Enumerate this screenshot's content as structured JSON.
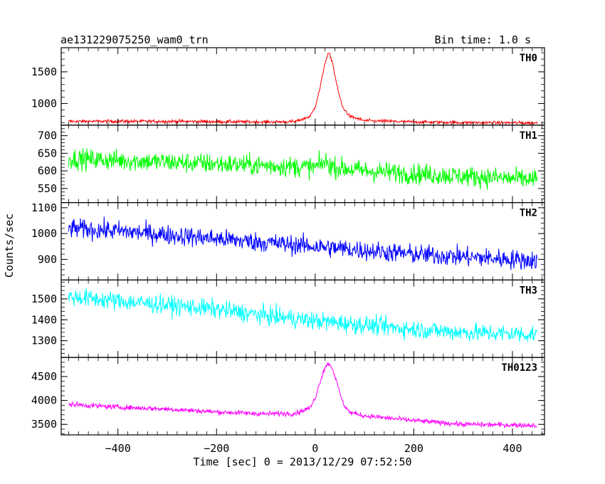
{
  "header": {
    "title": "ae131229075250_wam0_trn",
    "bin_time": "Bin time: 1.0 s"
  },
  "axes": {
    "xlabel": "Time [sec] 0 = 2013/12/29 07:52:50",
    "ylabel": "Counts/sec",
    "xlim": [
      -515,
      465
    ],
    "xticks": [
      -400,
      -200,
      0,
      200,
      400
    ],
    "xtick_labels": [
      "−400",
      "−200",
      "0",
      "200",
      "400"
    ]
  },
  "chart_data": {
    "type": "line",
    "title": "ae131229075250_wam0_trn",
    "xlabel": "Time [sec] 0 = 2013/12/29 07:52:50",
    "ylabel": "Counts/sec",
    "x_range": [
      -500,
      450
    ],
    "bin_time_s": 1.0,
    "panels": [
      {
        "name": "TH0",
        "color": "#ff0000",
        "ylim": [
          660,
          1880
        ],
        "yticks": [
          1000,
          1500
        ],
        "series_points": [
          [
            -500,
            720
          ],
          [
            -400,
            720
          ],
          [
            -300,
            720
          ],
          [
            -200,
            715
          ],
          [
            -100,
            710
          ],
          [
            -40,
            715
          ],
          [
            -10,
            800
          ],
          [
            0,
            950
          ],
          [
            10,
            1250
          ],
          [
            20,
            1650
          ],
          [
            28,
            1800
          ],
          [
            35,
            1650
          ],
          [
            45,
            1250
          ],
          [
            55,
            950
          ],
          [
            70,
            800
          ],
          [
            100,
            730
          ],
          [
            200,
            710
          ],
          [
            300,
            700
          ],
          [
            450,
            695
          ]
        ],
        "noise_amplitude": 45,
        "stroke": "#ff0000"
      },
      {
        "name": "TH1",
        "color": "#00ff00",
        "ylim": [
          510,
          730
        ],
        "yticks": [
          550,
          600,
          650,
          700
        ],
        "series_points": [
          [
            -500,
            635
          ],
          [
            -300,
            625
          ],
          [
            -100,
            615
          ],
          [
            0,
            610
          ],
          [
            20,
            625
          ],
          [
            40,
            610
          ],
          [
            100,
            600
          ],
          [
            200,
            592
          ],
          [
            300,
            585
          ],
          [
            450,
            575
          ]
        ],
        "noise_amplitude": 50,
        "stroke": "#00ff00"
      },
      {
        "name": "TH2",
        "color": "#0000ff",
        "ylim": [
          820,
          1120
        ],
        "yticks": [
          900,
          1000,
          1100
        ],
        "series_points": [
          [
            -500,
            1020
          ],
          [
            -400,
            1010
          ],
          [
            -300,
            995
          ],
          [
            -200,
            980
          ],
          [
            -100,
            965
          ],
          [
            0,
            950
          ],
          [
            100,
            935
          ],
          [
            200,
            920
          ],
          [
            300,
            910
          ],
          [
            450,
            895
          ]
        ],
        "noise_amplitude": 65,
        "stroke": "#0000ff"
      },
      {
        "name": "TH3",
        "color": "#00ffff",
        "ylim": [
          1220,
          1590
        ],
        "yticks": [
          1300,
          1400,
          1500
        ],
        "series_points": [
          [
            -500,
            1510
          ],
          [
            -400,
            1490
          ],
          [
            -300,
            1470
          ],
          [
            -200,
            1450
          ],
          [
            -100,
            1420
          ],
          [
            0,
            1395
          ],
          [
            100,
            1375
          ],
          [
            200,
            1355
          ],
          [
            300,
            1340
          ],
          [
            450,
            1330
          ]
        ],
        "noise_amplitude": 75,
        "stroke": "#00ffff"
      },
      {
        "name": "TH0123",
        "color": "#ff00ff",
        "ylim": [
          3280,
          4900
        ],
        "yticks": [
          3500,
          4000,
          4500
        ],
        "series_points": [
          [
            -500,
            3920
          ],
          [
            -400,
            3860
          ],
          [
            -300,
            3820
          ],
          [
            -200,
            3760
          ],
          [
            -100,
            3720
          ],
          [
            -40,
            3730
          ],
          [
            -10,
            3850
          ],
          [
            0,
            4050
          ],
          [
            10,
            4400
          ],
          [
            20,
            4700
          ],
          [
            28,
            4780
          ],
          [
            36,
            4650
          ],
          [
            46,
            4300
          ],
          [
            56,
            3950
          ],
          [
            70,
            3750
          ],
          [
            100,
            3680
          ],
          [
            200,
            3580
          ],
          [
            300,
            3500
          ],
          [
            450,
            3480
          ]
        ],
        "noise_amplitude": 90,
        "stroke": "#ff00ff"
      }
    ]
  }
}
